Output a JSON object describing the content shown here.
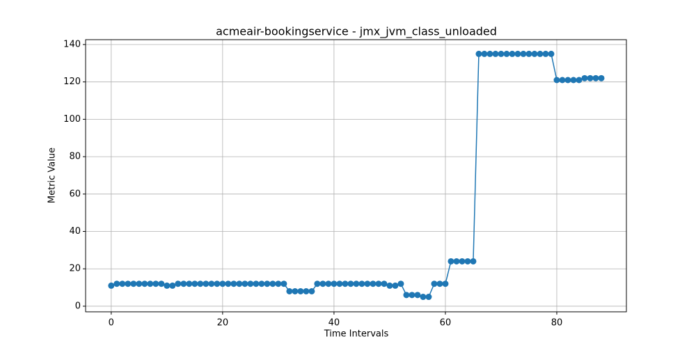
{
  "chart_data": {
    "type": "line",
    "title": "acmeair-bookingservice - jmx_jvm_class_unloaded",
    "x_label": "Time Intervals",
    "y_label": "Metric Value",
    "x": [
      0,
      1,
      2,
      3,
      4,
      5,
      6,
      7,
      8,
      9,
      10,
      11,
      12,
      13,
      14,
      15,
      16,
      17,
      18,
      19,
      20,
      21,
      22,
      23,
      24,
      25,
      26,
      27,
      28,
      29,
      30,
      31,
      32,
      33,
      34,
      35,
      36,
      37,
      38,
      39,
      40,
      41,
      42,
      43,
      44,
      45,
      46,
      47,
      48,
      49,
      50,
      51,
      52,
      53,
      54,
      55,
      56,
      57,
      58,
      59,
      60,
      61,
      62,
      63,
      64,
      65,
      66,
      67,
      68,
      69,
      70,
      71,
      72,
      73,
      74,
      75,
      76,
      77,
      78,
      79,
      80,
      81,
      82,
      83,
      84,
      85,
      86,
      87,
      88
    ],
    "series": [
      {
        "color": "#1f77b4",
        "values": [
          11,
          12,
          12,
          12,
          12,
          12,
          12,
          12,
          12,
          12,
          11,
          11,
          12,
          12,
          12,
          12,
          12,
          12,
          12,
          12,
          12,
          12,
          12,
          12,
          12,
          12,
          12,
          12,
          12,
          12,
          12,
          12,
          8,
          8,
          8,
          8,
          8,
          12,
          12,
          12,
          12,
          12,
          12,
          12,
          12,
          12,
          12,
          12,
          12,
          12,
          11,
          11,
          12,
          6,
          6,
          6,
          5,
          5,
          12,
          12,
          12,
          24,
          24,
          24,
          24,
          24,
          135,
          135,
          135,
          135,
          135,
          135,
          135,
          135,
          135,
          135,
          135,
          135,
          135,
          135,
          121,
          121,
          121,
          121,
          121,
          122,
          122,
          122,
          122
        ]
      }
    ],
    "xlim": [
      -4.6,
      92.5
    ],
    "ylim": [
      -3,
      142.6
    ],
    "xticks": [
      0,
      20,
      40,
      60,
      80
    ],
    "yticks": [
      0,
      20,
      40,
      60,
      80,
      100,
      120,
      140
    ],
    "grid": true
  }
}
